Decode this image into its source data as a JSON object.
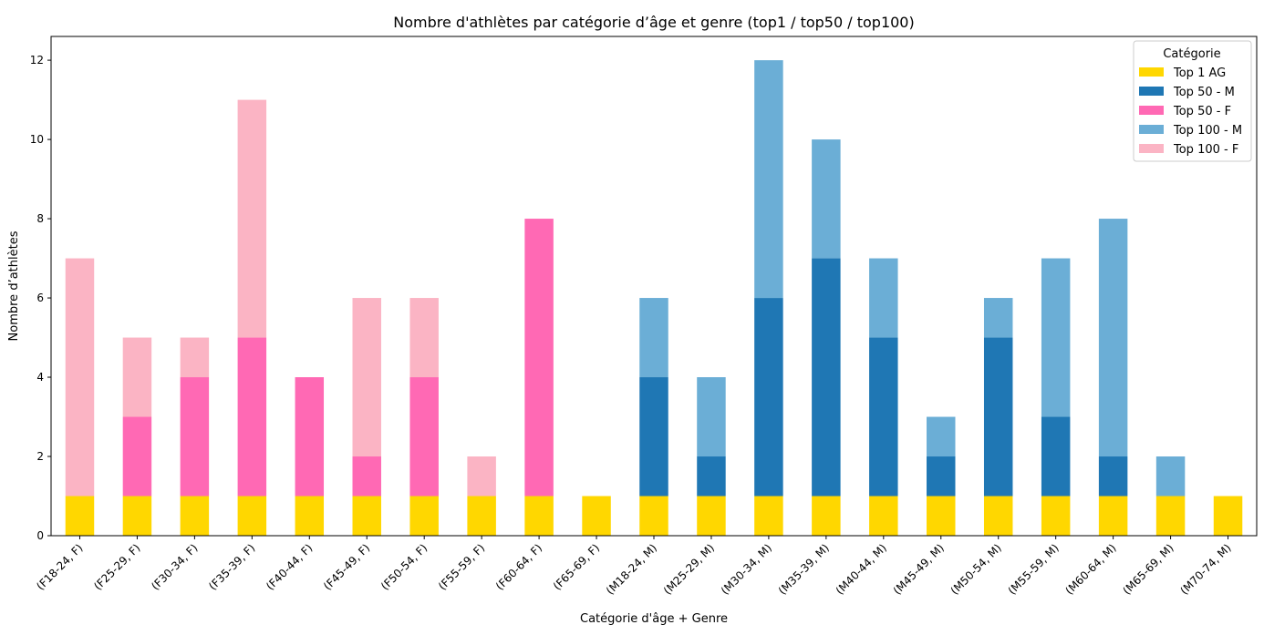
{
  "chart_data": {
    "type": "bar",
    "stacked": true,
    "title": "Nombre d'athlètes par catégorie d’âge et genre (top1 / top50 / top100)",
    "xlabel": "Catégorie d'âge + Genre",
    "ylabel": "Nombre d’athlètes",
    "ylim": [
      0,
      12.6
    ],
    "yticks": [
      0,
      2,
      4,
      6,
      8,
      10,
      12
    ],
    "grid": false,
    "legend": {
      "title": "Catégorie",
      "placement": "top-right"
    },
    "categories": [
      "(F18-24, F)",
      "(F25-29, F)",
      "(F30-34, F)",
      "(F35-39, F)",
      "(F40-44, F)",
      "(F45-49, F)",
      "(F50-54, F)",
      "(F55-59, F)",
      "(F60-64, F)",
      "(F65-69, F)",
      "(M18-24, M)",
      "(M25-29, M)",
      "(M30-34, M)",
      "(M35-39, M)",
      "(M40-44, M)",
      "(M45-49, M)",
      "(M50-54, M)",
      "(M55-59, M)",
      "(M60-64, M)",
      "(M65-69, M)",
      "(M70-74, M)"
    ],
    "series": [
      {
        "name": "Top 1 AG",
        "color": "#FFD700",
        "values": [
          1,
          1,
          1,
          1,
          1,
          1,
          1,
          1,
          1,
          1,
          1,
          1,
          1,
          1,
          1,
          1,
          1,
          1,
          1,
          1,
          1
        ]
      },
      {
        "name": "Top 50 - M",
        "color": "#1F77B4",
        "values": [
          0,
          0,
          0,
          0,
          0,
          0,
          0,
          0,
          0,
          0,
          3,
          1,
          5,
          6,
          4,
          1,
          4,
          2,
          1,
          0,
          0
        ]
      },
      {
        "name": "Top 50 - F",
        "color": "#FF69B4",
        "values": [
          0,
          2,
          3,
          4,
          3,
          1,
          3,
          0,
          7,
          0,
          0,
          0,
          0,
          0,
          0,
          0,
          0,
          0,
          0,
          0,
          0
        ]
      },
      {
        "name": "Top 100 - M",
        "color": "#6BAED6",
        "values": [
          0,
          0,
          0,
          0,
          0,
          0,
          0,
          0,
          0,
          0,
          2,
          2,
          6,
          3,
          2,
          1,
          1,
          4,
          6,
          1,
          0
        ]
      },
      {
        "name": "Top 100 - F",
        "color": "#FBB4C4",
        "values": [
          6,
          2,
          1,
          6,
          0,
          4,
          2,
          1,
          0,
          0,
          0,
          0,
          0,
          0,
          0,
          0,
          0,
          0,
          0,
          0,
          0
        ]
      }
    ]
  }
}
